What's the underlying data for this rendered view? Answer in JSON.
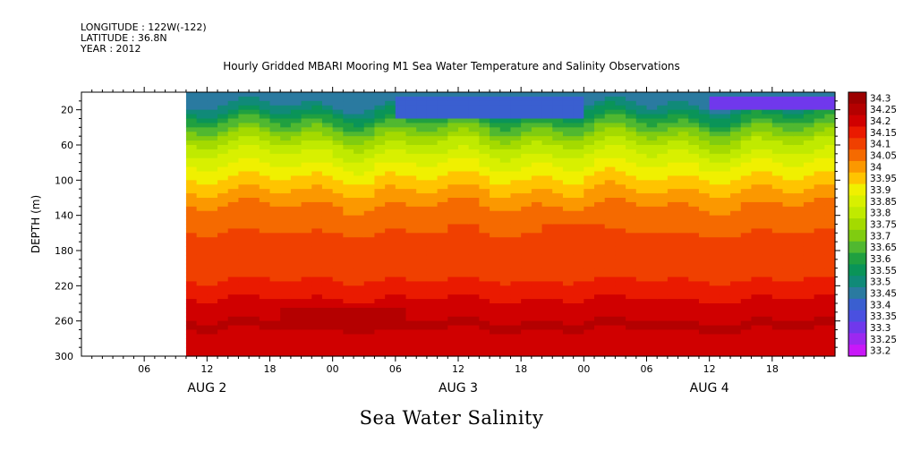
{
  "header": {
    "longitude": "LONGITUDE : 122W(-122)",
    "latitude": "LATITUDE : 36.8N",
    "year": "YEAR : 2012"
  },
  "chart_data": {
    "type": "heatmap",
    "title": "Hourly Gridded MBARI Mooring M1 Sea Water Temperature and Salinity Observations",
    "footer": "Sea Water Salinity",
    "xlabel": "",
    "ylabel": "DEPTH (m)",
    "x_hour_range": [
      0,
      72
    ],
    "data_start_hour": 10,
    "x_tick_hours": [
      6,
      12,
      18,
      24,
      30,
      36,
      42,
      48,
      54,
      60,
      66
    ],
    "x_tick_labels": [
      "06",
      "12",
      "18",
      "00",
      "06",
      "12",
      "18",
      "00",
      "06",
      "12",
      "18"
    ],
    "date_labels": [
      {
        "hour": 12,
        "text": "AUG  2"
      },
      {
        "hour": 36,
        "text": "AUG  3"
      },
      {
        "hour": 60,
        "text": "AUG  4"
      }
    ],
    "y_range": [
      300,
      0
    ],
    "y_ticks": [
      20,
      60,
      100,
      140,
      180,
      220,
      260,
      300
    ],
    "y_tick_labels": [
      "20",
      "60",
      "100",
      "140",
      "180",
      "220",
      "260",
      "300"
    ],
    "colorbar_levels": [
      "34.3",
      "34.25",
      "34.2",
      "34.15",
      "34.1",
      "34.05",
      "34",
      "33.95",
      "33.9",
      "33.85",
      "33.8",
      "33.75",
      "33.7",
      "33.65",
      "33.6",
      "33.55",
      "33.5",
      "33.45",
      "33.4",
      "33.35",
      "33.3",
      "33.25",
      "33.2"
    ],
    "colorbar_colors": [
      "#9c0000",
      "#b40000",
      "#d00000",
      "#ea1a00",
      "#f04000",
      "#f56a00",
      "#fb9800",
      "#ffc400",
      "#f0f000",
      "#d8f000",
      "#c0ea00",
      "#a4da00",
      "#80cc10",
      "#50b830",
      "#20a040",
      "#0a9458",
      "#108a78",
      "#2a7aa0",
      "#3a5fd0",
      "#4a50e0",
      "#7038ec",
      "#9c28f0",
      "#c818f8"
    ],
    "depth_profile": {
      "depths": [
        5,
        12,
        22,
        35,
        50,
        62,
        75,
        88,
        100,
        112,
        125,
        140,
        160,
        185,
        210,
        225,
        240,
        255,
        265,
        280,
        295
      ],
      "salinity": [
        33.45,
        33.48,
        33.55,
        33.65,
        33.75,
        33.82,
        33.87,
        33.92,
        33.96,
        34.0,
        34.04,
        34.08,
        34.1,
        34.11,
        34.14,
        34.18,
        34.21,
        34.24,
        34.26,
        34.23,
        34.2
      ]
    },
    "features": [
      {
        "name": "fresh-surface-aug3",
        "hour_range": [
          30,
          48
        ],
        "depth_range": [
          5,
          30
        ],
        "salinity": 33.4
      },
      {
        "name": "fresh-surface-aug4",
        "hour_range": [
          60,
          72
        ],
        "depth_range": [
          5,
          20
        ],
        "salinity": 33.3
      },
      {
        "name": "salty-core-aug3",
        "hour_range": [
          19,
          31
        ],
        "depth_range": [
          245,
          272
        ],
        "salinity": 34.28
      },
      {
        "name": "high-pocket-aug3-noon",
        "hour_range": [
          35,
          38
        ],
        "depth_range": [
          150,
          170
        ],
        "salinity": 34.13
      },
      {
        "name": "high-pocket-aug3-night",
        "hour_range": [
          44,
          50
        ],
        "depth_range": [
          150,
          185
        ],
        "salinity": 34.13
      }
    ]
  }
}
